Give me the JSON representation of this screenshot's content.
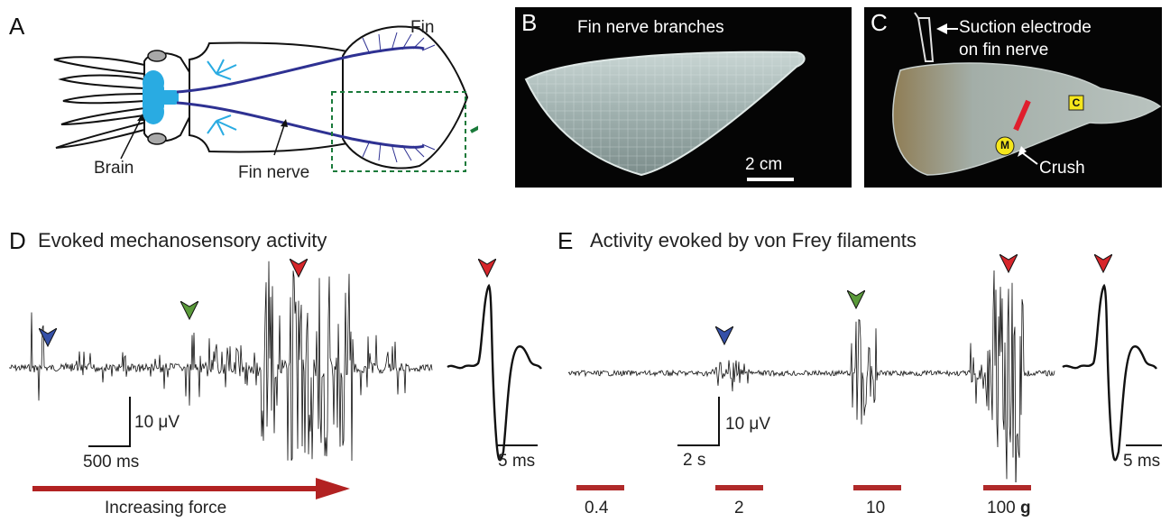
{
  "panel_a": {
    "letter": "A",
    "labels": {
      "fin": "Fin",
      "brain": "Brain",
      "fin_nerve": "Fin nerve"
    }
  },
  "panel_b": {
    "letter": "B",
    "title": "Fin nerve branches",
    "scale_bar": "2 cm"
  },
  "panel_c": {
    "letter": "C",
    "electrode_label_line1": "Suction electrode",
    "electrode_label_line2": "on fin nerve",
    "crush_label": "Crush",
    "marker_c": "C",
    "marker_m": "M"
  },
  "panel_d": {
    "letter": "D",
    "title": "Evoked mechanosensory activity",
    "scale_voltage": "10 μV",
    "scale_time": "500 ms",
    "inset_scale_time": "5 ms",
    "force_arrow_label": "Increasing force"
  },
  "panel_e": {
    "letter": "E",
    "title": "Activity evoked by von Frey filaments",
    "scale_voltage": "10 μV",
    "scale_time": "2 s",
    "inset_scale_time": "5 ms",
    "stimuli": [
      {
        "label": "0.4"
      },
      {
        "label": "2"
      },
      {
        "label": "10"
      },
      {
        "label": "100",
        "unit": "g"
      }
    ]
  },
  "colors": {
    "brain": "#29abe2",
    "nerve": "#2e3192",
    "dashed_box": "#1a7a3a",
    "arrow_green": "#1a7a3a",
    "marker_blue": "#3550a8",
    "marker_green": "#5a9a3a",
    "marker_red": "#d7262b",
    "stimulus_bar": "#b02a2a",
    "force_arrow": "#b22222",
    "crush": "#e01e2d",
    "marker_yellow": "#f5e61c"
  }
}
